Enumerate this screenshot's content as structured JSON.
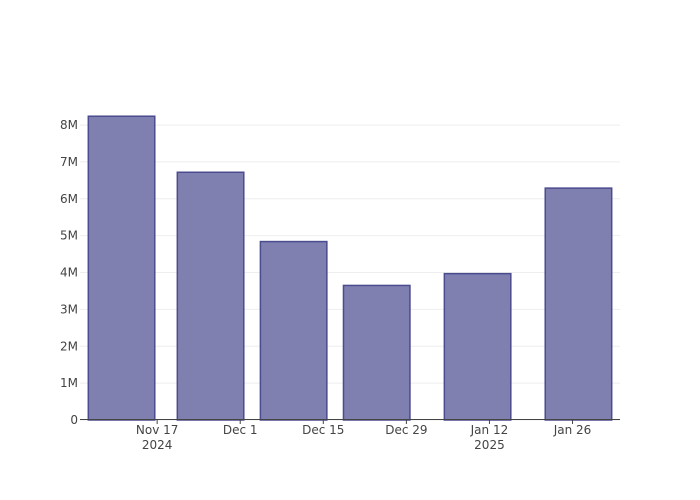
{
  "chart_data": {
    "type": "bar",
    "x": [
      "2024-11-11",
      "2024-11-26",
      "2024-12-10",
      "2024-12-24",
      "2025-01-10",
      "2025-01-27"
    ],
    "values": [
      8240000,
      6720000,
      4840000,
      3650000,
      3970000,
      6290000
    ],
    "color": "#7f7fb0",
    "edge_color": "#4b4b8f",
    "xlim": [
      "2024-11-04",
      "2025-02-03"
    ],
    "xticks": [
      {
        "value": "2024-11-17",
        "label": [
          "Nov 17",
          "2024"
        ]
      },
      {
        "value": "2024-12-01",
        "label": [
          "Dec 1"
        ]
      },
      {
        "value": "2024-12-15",
        "label": [
          "Dec 15"
        ]
      },
      {
        "value": "2024-12-29",
        "label": [
          "Dec 29"
        ]
      },
      {
        "value": "2025-01-12",
        "label": [
          "Jan 12",
          "2025"
        ]
      },
      {
        "value": "2025-01-26",
        "label": [
          "Jan 26"
        ]
      }
    ],
    "ylim": [
      0,
      8680000
    ],
    "yticks": [
      0,
      {
        "value": 1000000,
        "label": "1M"
      },
      {
        "value": 2000000,
        "label": "2M"
      },
      {
        "value": 3000000,
        "label": "3M"
      },
      {
        "value": 4000000,
        "label": "4M"
      },
      {
        "value": 5000000,
        "label": "5M"
      },
      {
        "value": 6000000,
        "label": "6M"
      },
      {
        "value": 7000000,
        "label": "7M"
      },
      {
        "value": 8000000,
        "label": "8M"
      }
    ],
    "grid": true
  }
}
